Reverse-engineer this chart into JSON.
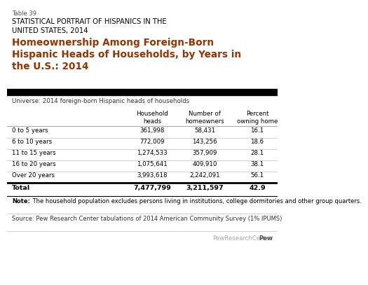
{
  "table_label": "Table 39",
  "supertitle": "STATISTICAL PORTRAIT OF HISPANICS IN THE\nUNITED STATES, 2014",
  "title": "Homeownership Among Foreign-Born\nHispanic Heads of Households, by Years in\nthe U.S.: 2014",
  "universe": "Universe: 2014 foreign-born Hispanic heads of households",
  "col_headers": [
    "Household\nheads",
    "Number of\nhomeowners",
    "Percent\nowning home"
  ],
  "row_labels": [
    "0 to 5 years",
    "6 to 10 years",
    "11 to 15 years",
    "16 to 20 years",
    "Over 20 years",
    "Total"
  ],
  "data": [
    [
      "361,998",
      "58,431",
      "16.1"
    ],
    [
      "772,009",
      "143,256",
      "18.6"
    ],
    [
      "1,274,533",
      "357,909",
      "28.1"
    ],
    [
      "1,075,641",
      "409,910",
      "38.1"
    ],
    [
      "3,993,618",
      "2,242,091",
      "56.1"
    ],
    [
      "7,477,799",
      "3,211,597",
      "42.9"
    ]
  ],
  "note_bold": "Note:",
  "note_rest": " The household population excludes persons living in institutions, college dormitories and other group quarters.",
  "source": "Source: Pew Research Center tabulations of 2014 American Community Survey (1% IPUMS)",
  "supertitle_color": "#000000",
  "title_color": "#993300",
  "black_bar_color": "#000000",
  "sep_color": "#cccccc",
  "bg_color": "#ffffff",
  "data_color": "#000000",
  "universe_color": "#333333",
  "note_color": "#000000",
  "source_color": "#333333",
  "brand_bold_color": "#333333",
  "brand_light_color": "#999999"
}
